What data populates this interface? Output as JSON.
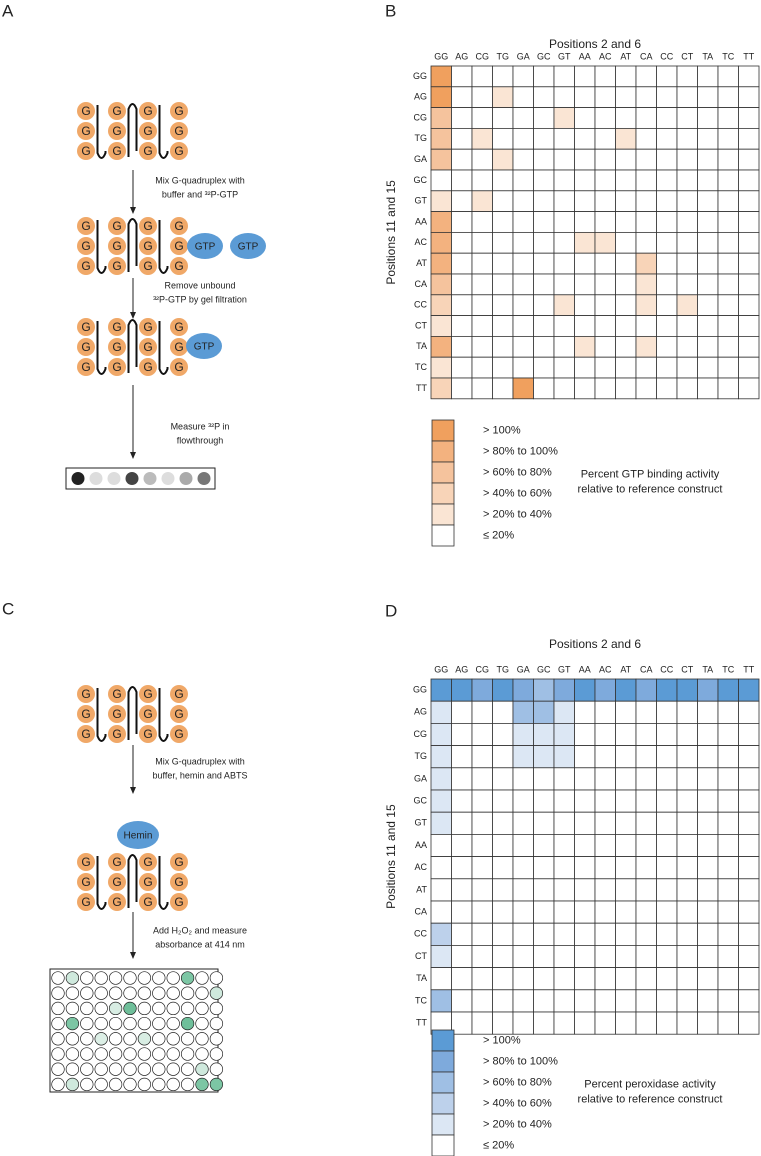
{
  "panel_a": {
    "label": "A",
    "letter": "G",
    "ligand": "GTP",
    "steps": [
      [
        "Mix G-quadruplex with",
        "buffer and ³²P-GTP"
      ],
      [
        "Remove unbound",
        "³²P-GTP by gel filtration"
      ],
      [
        "Measure ³²P in",
        "flowthrough"
      ]
    ]
  },
  "panel_b": {
    "label": "B",
    "title": "Positions 2 and 6",
    "y_label": "Positions 11 and 15",
    "columns": [
      "GG",
      "AG",
      "CG",
      "TG",
      "GA",
      "GC",
      "GT",
      "AA",
      "AC",
      "AT",
      "CA",
      "CC",
      "CT",
      "TA",
      "TC",
      "TT"
    ],
    "rows": [
      "GG",
      "AG",
      "CG",
      "TG",
      "GA",
      "GC",
      "GT",
      "AA",
      "AC",
      "AT",
      "CA",
      "CC",
      "CT",
      "TA",
      "TC",
      "TT"
    ],
    "levels": [
      [
        5,
        0,
        0,
        0,
        0,
        0,
        0,
        0,
        0,
        0,
        0,
        0,
        0,
        0,
        0,
        0
      ],
      [
        5,
        0,
        0,
        1,
        0,
        0,
        0,
        0,
        0,
        0,
        0,
        0,
        0,
        0,
        0,
        0
      ],
      [
        3,
        0,
        0,
        0,
        0,
        0,
        1,
        0,
        0,
        0,
        0,
        0,
        0,
        0,
        0,
        0
      ],
      [
        3,
        0,
        1,
        0,
        0,
        0,
        0,
        0,
        0,
        1,
        0,
        0,
        0,
        0,
        0,
        0
      ],
      [
        3,
        0,
        0,
        1,
        0,
        0,
        0,
        0,
        0,
        0,
        0,
        0,
        0,
        0,
        0,
        0
      ],
      [
        0,
        0,
        0,
        0,
        0,
        0,
        0,
        0,
        0,
        0,
        0,
        0,
        0,
        0,
        0,
        0
      ],
      [
        1,
        0,
        1,
        0,
        0,
        0,
        0,
        0,
        0,
        0,
        0,
        0,
        0,
        0,
        0,
        0
      ],
      [
        4,
        0,
        0,
        0,
        0,
        0,
        0,
        0,
        0,
        0,
        0,
        0,
        0,
        0,
        0,
        0
      ],
      [
        4,
        0,
        0,
        0,
        0,
        0,
        0,
        1,
        1,
        0,
        0,
        0,
        0,
        0,
        0,
        0
      ],
      [
        4,
        0,
        0,
        0,
        0,
        0,
        0,
        0,
        0,
        0,
        2,
        0,
        0,
        0,
        0,
        0
      ],
      [
        3,
        0,
        0,
        0,
        0,
        0,
        0,
        0,
        0,
        0,
        1,
        0,
        0,
        0,
        0,
        0
      ],
      [
        2,
        0,
        0,
        0,
        0,
        0,
        1,
        0,
        0,
        0,
        1,
        0,
        1,
        0,
        0,
        0
      ],
      [
        1,
        0,
        0,
        0,
        0,
        0,
        0,
        0,
        0,
        0,
        0,
        0,
        0,
        0,
        0,
        0
      ],
      [
        4,
        0,
        0,
        0,
        0,
        0,
        0,
        1,
        0,
        0,
        1,
        0,
        0,
        0,
        0,
        0
      ],
      [
        1,
        0,
        0,
        0,
        0,
        0,
        0,
        0,
        0,
        0,
        0,
        0,
        0,
        0,
        0,
        0
      ],
      [
        2,
        0,
        0,
        0,
        5,
        0,
        0,
        0,
        0,
        0,
        0,
        0,
        0,
        0,
        0,
        0
      ]
    ],
    "legend": [
      {
        "label": "> 100%",
        "color": "#f0a05e"
      },
      {
        "label": "> 80% to 100%",
        "color": "#f3b27f"
      },
      {
        "label": "> 60% to 80%",
        "color": "#f5c39d"
      },
      {
        "label": "> 40% to 60%",
        "color": "#f8d4b8"
      },
      {
        "label": "> 20% to 40%",
        "color": "#fae5d4"
      },
      {
        "label": "≤ 20%",
        "color": "#ffffff"
      }
    ],
    "legend_caption": [
      "Percent GTP binding activity",
      "relative to reference construct"
    ]
  },
  "panel_c": {
    "label": "C",
    "letter": "G",
    "ligand": "Hemin",
    "steps": [
      [
        "Mix G-quadruplex with",
        "buffer, hemin and ABTS"
      ],
      [
        "Add H₂O₂ and measure",
        "absorbance at 414 nm"
      ]
    ]
  },
  "panel_d": {
    "label": "D",
    "title": "Positions 2 and 6",
    "y_label": "Positions 11 and 15",
    "columns": [
      "GG",
      "AG",
      "CG",
      "TG",
      "GA",
      "GC",
      "GT",
      "AA",
      "AC",
      "AT",
      "CA",
      "CC",
      "CT",
      "TA",
      "TC",
      "TT"
    ],
    "rows": [
      "GG",
      "AG",
      "CG",
      "TG",
      "GA",
      "GC",
      "GT",
      "AA",
      "AC",
      "AT",
      "CA",
      "CC",
      "CT",
      "TA",
      "TC",
      "TT"
    ],
    "levels": [
      [
        5,
        5,
        4,
        5,
        4,
        3,
        4,
        5,
        4,
        5,
        4,
        5,
        5,
        4,
        5,
        5
      ],
      [
        1,
        0,
        0,
        0,
        3,
        3,
        1,
        0,
        0,
        0,
        0,
        0,
        0,
        0,
        0,
        0
      ],
      [
        1,
        0,
        0,
        0,
        1,
        1,
        1,
        0,
        0,
        0,
        0,
        0,
        0,
        0,
        0,
        0
      ],
      [
        1,
        0,
        0,
        0,
        1,
        1,
        1,
        0,
        0,
        0,
        0,
        0,
        0,
        0,
        0,
        0
      ],
      [
        1,
        0,
        0,
        0,
        0,
        0,
        0,
        0,
        0,
        0,
        0,
        0,
        0,
        0,
        0,
        0
      ],
      [
        1,
        0,
        0,
        0,
        0,
        0,
        0,
        0,
        0,
        0,
        0,
        0,
        0,
        0,
        0,
        0
      ],
      [
        1,
        0,
        0,
        0,
        0,
        0,
        0,
        0,
        0,
        0,
        0,
        0,
        0,
        0,
        0,
        0
      ],
      [
        0,
        0,
        0,
        0,
        0,
        0,
        0,
        0,
        0,
        0,
        0,
        0,
        0,
        0,
        0,
        0
      ],
      [
        0,
        0,
        0,
        0,
        0,
        0,
        0,
        0,
        0,
        0,
        0,
        0,
        0,
        0,
        0,
        0
      ],
      [
        0,
        0,
        0,
        0,
        0,
        0,
        0,
        0,
        0,
        0,
        0,
        0,
        0,
        0,
        0,
        0
      ],
      [
        0,
        0,
        0,
        0,
        0,
        0,
        0,
        0,
        0,
        0,
        0,
        0,
        0,
        0,
        0,
        0
      ],
      [
        2,
        0,
        0,
        0,
        0,
        0,
        0,
        0,
        0,
        0,
        0,
        0,
        0,
        0,
        0,
        0
      ],
      [
        1,
        0,
        0,
        0,
        0,
        0,
        0,
        0,
        0,
        0,
        0,
        0,
        0,
        0,
        0,
        0
      ],
      [
        0,
        0,
        0,
        0,
        0,
        0,
        0,
        0,
        0,
        0,
        0,
        0,
        0,
        0,
        0,
        0
      ],
      [
        3,
        0,
        0,
        0,
        0,
        0,
        0,
        0,
        0,
        0,
        0,
        0,
        0,
        0,
        0,
        0
      ],
      [
        0,
        0,
        0,
        0,
        0,
        0,
        0,
        0,
        0,
        0,
        0,
        0,
        0,
        0,
        0,
        0
      ]
    ],
    "legend": [
      {
        "label": "> 100%",
        "color": "#5b9bd5"
      },
      {
        "label": "> 80% to 100%",
        "color": "#7eaadc"
      },
      {
        "label": "> 60% to 80%",
        "color": "#9fbfe4"
      },
      {
        "label": "> 40% to 60%",
        "color": "#bdd1eb"
      },
      {
        "label": "> 20% to 40%",
        "color": "#dce7f4"
      },
      {
        "label": "≤ 20%",
        "color": "#ffffff"
      }
    ],
    "legend_caption": [
      "Percent peroxidase activity",
      "relative to reference construct"
    ]
  }
}
